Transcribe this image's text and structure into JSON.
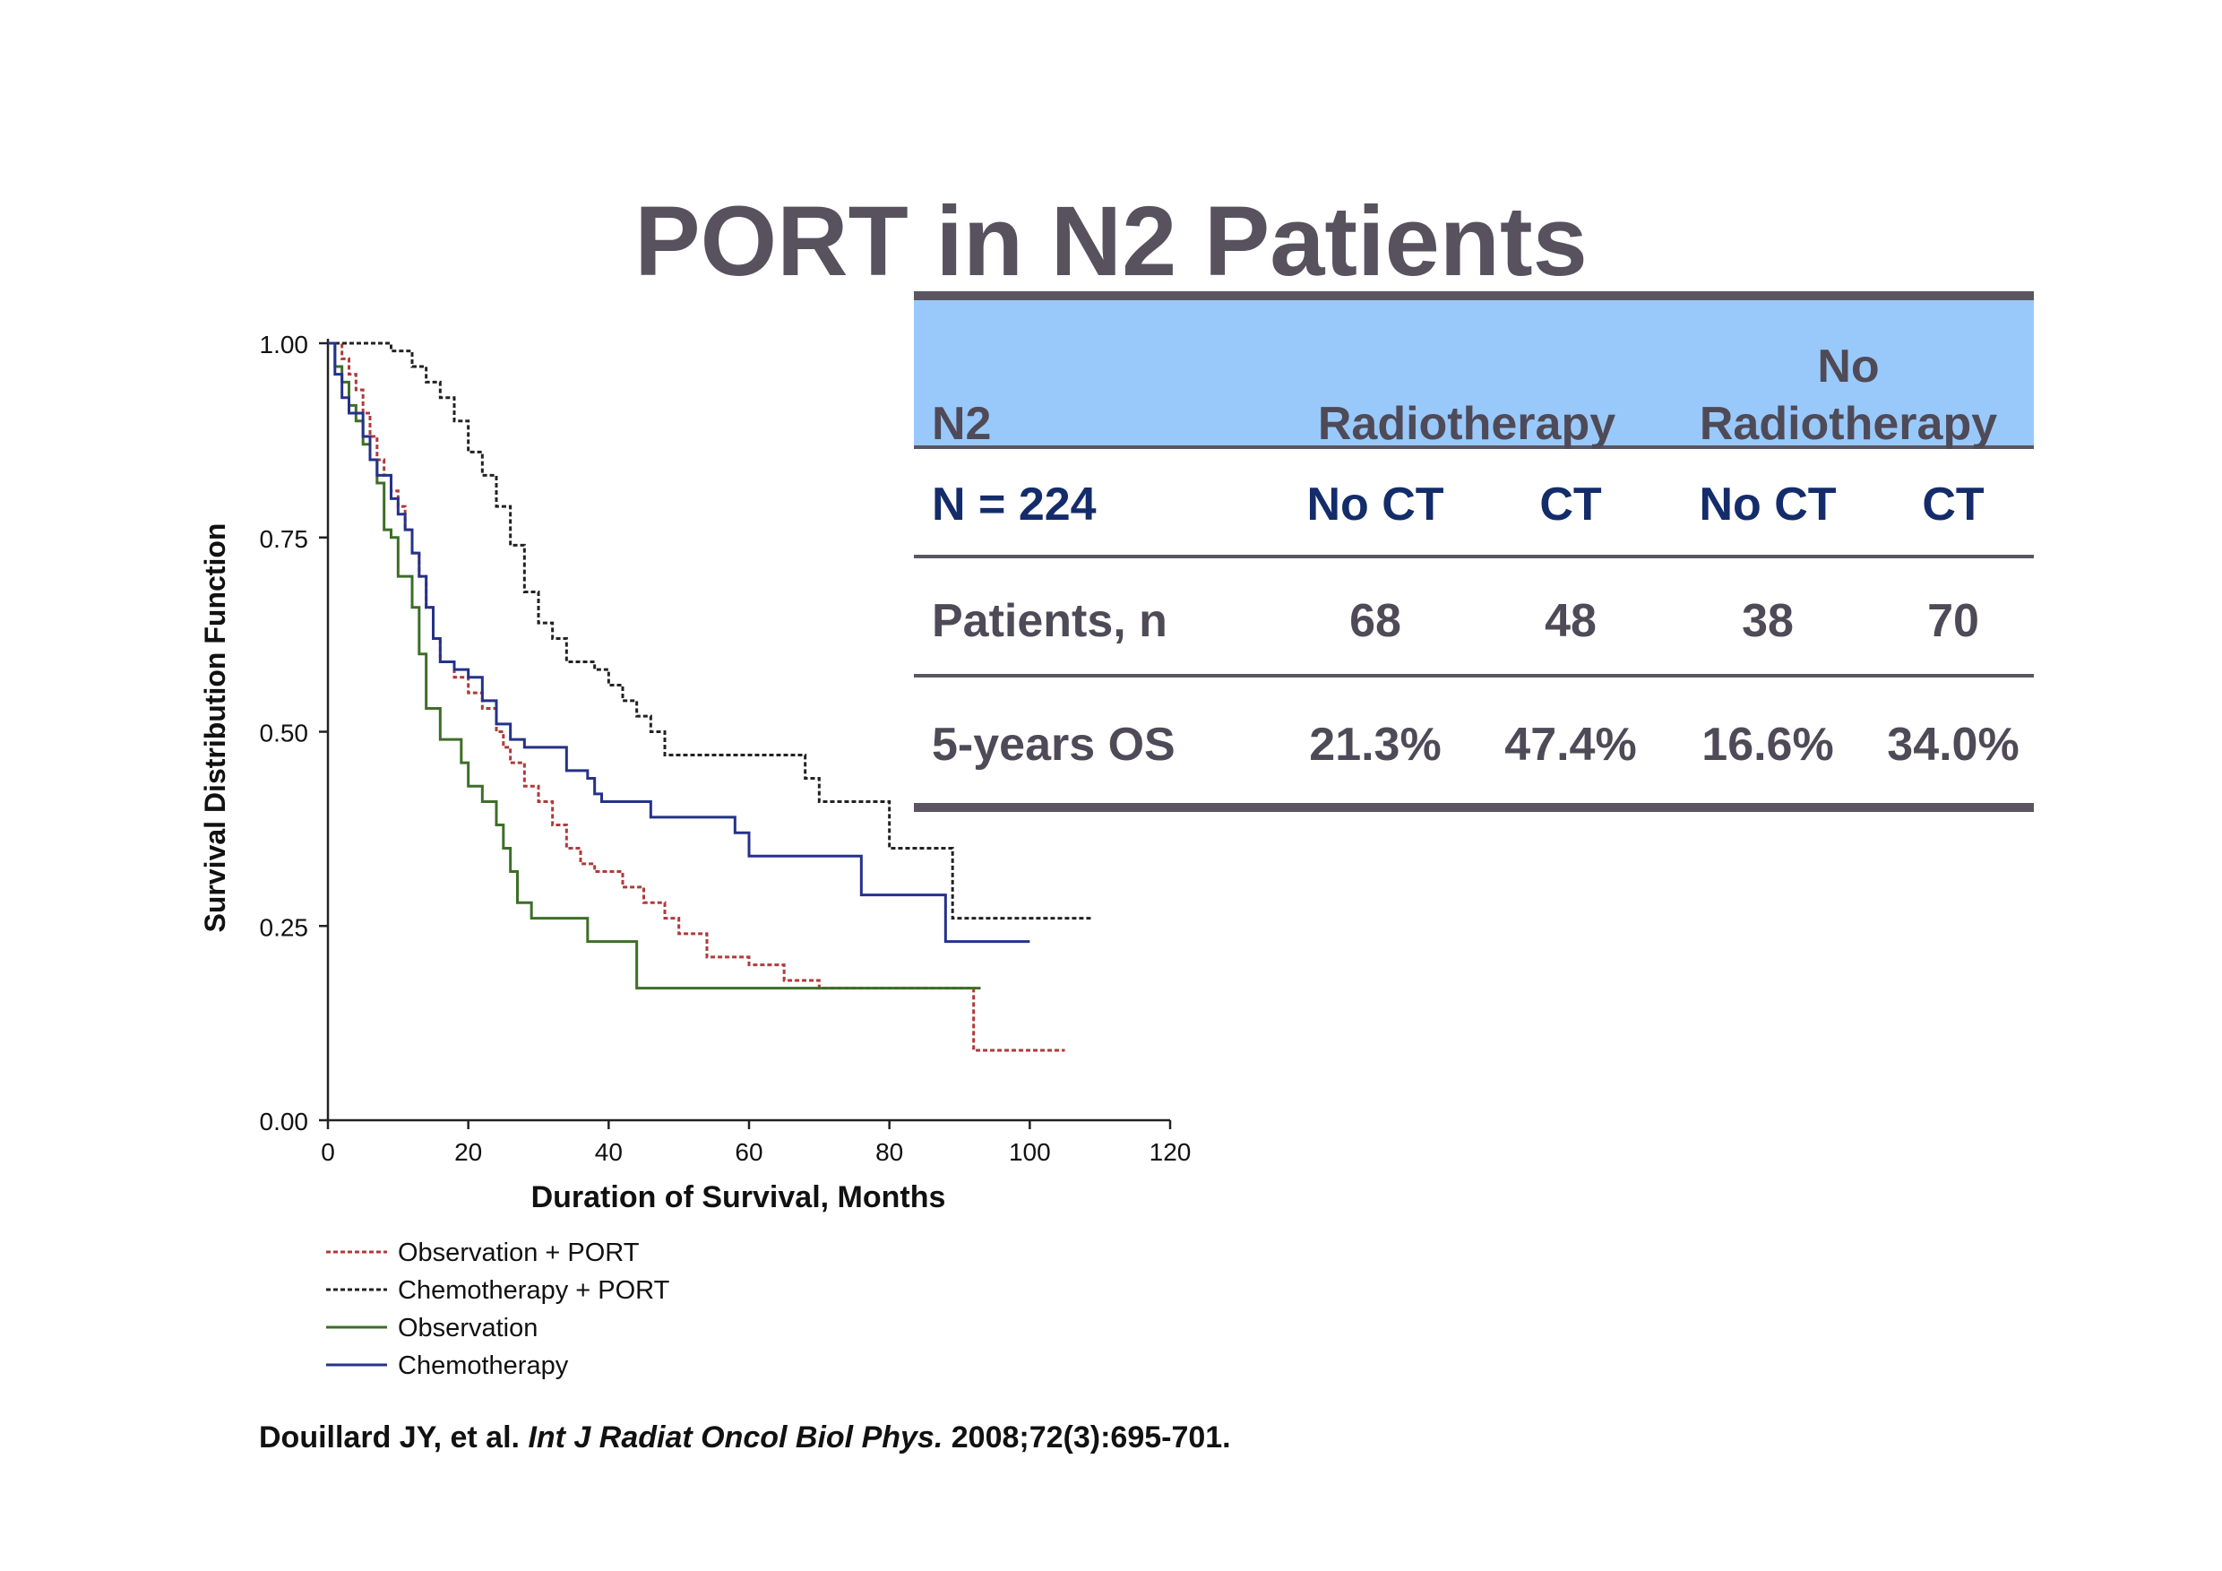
{
  "slide": {
    "title": "PORT in N2 Patients"
  },
  "table": {
    "header": {
      "group_label": "N2",
      "radiotherapy": "Radiotherapy",
      "no_radiotherapy_line1": "No",
      "no_radiotherapy_line2": "Radiotherapy"
    },
    "subheader": {
      "label": "N = 224",
      "cols": [
        "No CT",
        "CT",
        "No CT",
        "CT"
      ]
    },
    "rows": [
      {
        "label": "Patients, n",
        "values": [
          "68",
          "48",
          "38",
          "70"
        ]
      },
      {
        "label": "5-years OS",
        "values": [
          "21.3%",
          "47.4%",
          "16.6%",
          "34.0%"
        ]
      }
    ],
    "colors": {
      "header_bg": "#99c9fb",
      "rule": "#5a5560",
      "subheader_text": "#142c6a",
      "body_text": "#4f4a57"
    }
  },
  "chart_data": {
    "type": "line",
    "title": "",
    "xlabel": "Duration of Survival, Months",
    "ylabel": "Survival Distribution Function",
    "xlim": [
      0,
      120
    ],
    "ylim": [
      0,
      1
    ],
    "xticks": [
      "0",
      "20",
      "40",
      "60",
      "80",
      "100",
      "120"
    ],
    "yticks": [
      "0.00",
      "0.25",
      "0.50",
      "0.75",
      "1.00"
    ],
    "legend_position": "bottom-left",
    "series": [
      {
        "name": "Observation + PORT",
        "color": "#b03a3a",
        "dash": true,
        "points": [
          [
            0,
            1
          ],
          [
            2,
            0.98
          ],
          [
            3,
            0.96
          ],
          [
            4,
            0.94
          ],
          [
            5,
            0.91
          ],
          [
            6,
            0.88
          ],
          [
            7,
            0.85
          ],
          [
            8,
            0.83
          ],
          [
            9,
            0.81
          ],
          [
            10,
            0.79
          ],
          [
            11,
            0.76
          ],
          [
            12,
            0.73
          ],
          [
            13,
            0.7
          ],
          [
            14,
            0.66
          ],
          [
            15,
            0.62
          ],
          [
            16,
            0.59
          ],
          [
            18,
            0.57
          ],
          [
            20,
            0.55
          ],
          [
            22,
            0.53
          ],
          [
            24,
            0.5
          ],
          [
            25,
            0.48
          ],
          [
            26,
            0.46
          ],
          [
            28,
            0.43
          ],
          [
            30,
            0.41
          ],
          [
            32,
            0.38
          ],
          [
            34,
            0.35
          ],
          [
            36,
            0.33
          ],
          [
            38,
            0.32
          ],
          [
            42,
            0.3
          ],
          [
            45,
            0.28
          ],
          [
            48,
            0.26
          ],
          [
            50,
            0.24
          ],
          [
            54,
            0.21
          ],
          [
            60,
            0.2
          ],
          [
            65,
            0.18
          ],
          [
            70,
            0.17
          ],
          [
            92,
            0.17
          ],
          [
            92,
            0.09
          ],
          [
            105,
            0.09
          ]
        ]
      },
      {
        "name": "Chemotherapy + PORT",
        "color": "#222222",
        "dash": true,
        "points": [
          [
            0,
            1
          ],
          [
            8,
            1
          ],
          [
            9,
            0.99
          ],
          [
            12,
            0.97
          ],
          [
            14,
            0.95
          ],
          [
            16,
            0.93
          ],
          [
            18,
            0.9
          ],
          [
            20,
            0.86
          ],
          [
            22,
            0.83
          ],
          [
            24,
            0.79
          ],
          [
            26,
            0.74
          ],
          [
            28,
            0.68
          ],
          [
            30,
            0.64
          ],
          [
            32,
            0.62
          ],
          [
            34,
            0.59
          ],
          [
            38,
            0.58
          ],
          [
            40,
            0.56
          ],
          [
            42,
            0.54
          ],
          [
            44,
            0.52
          ],
          [
            46,
            0.5
          ],
          [
            48,
            0.47
          ],
          [
            66,
            0.47
          ],
          [
            68,
            0.44
          ],
          [
            70,
            0.41
          ],
          [
            80,
            0.41
          ],
          [
            80,
            0.35
          ],
          [
            89,
            0.35
          ],
          [
            89,
            0.26
          ],
          [
            109,
            0.26
          ]
        ]
      },
      {
        "name": "Observation",
        "color": "#3d6e27",
        "dash": false,
        "points": [
          [
            0,
            1
          ],
          [
            1,
            0.97
          ],
          [
            2,
            0.95
          ],
          [
            3,
            0.92
          ],
          [
            4,
            0.9
          ],
          [
            5,
            0.87
          ],
          [
            6,
            0.85
          ],
          [
            7,
            0.82
          ],
          [
            8,
            0.76
          ],
          [
            9,
            0.75
          ],
          [
            10,
            0.7
          ],
          [
            12,
            0.66
          ],
          [
            13,
            0.6
          ],
          [
            14,
            0.53
          ],
          [
            16,
            0.49
          ],
          [
            19,
            0.46
          ],
          [
            20,
            0.43
          ],
          [
            22,
            0.41
          ],
          [
            24,
            0.38
          ],
          [
            25,
            0.35
          ],
          [
            26,
            0.32
          ],
          [
            27,
            0.28
          ],
          [
            29,
            0.26
          ],
          [
            35,
            0.26
          ],
          [
            37,
            0.23
          ],
          [
            43,
            0.23
          ],
          [
            44,
            0.17
          ],
          [
            93,
            0.17
          ]
        ]
      },
      {
        "name": "Chemotherapy",
        "color": "#24328a",
        "dash": false,
        "points": [
          [
            0,
            1
          ],
          [
            1,
            0.96
          ],
          [
            2,
            0.93
          ],
          [
            3,
            0.91
          ],
          [
            5,
            0.88
          ],
          [
            6,
            0.85
          ],
          [
            7,
            0.83
          ],
          [
            9,
            0.8
          ],
          [
            10,
            0.78
          ],
          [
            11,
            0.76
          ],
          [
            12,
            0.73
          ],
          [
            13,
            0.7
          ],
          [
            14,
            0.66
          ],
          [
            15,
            0.62
          ],
          [
            16,
            0.59
          ],
          [
            18,
            0.58
          ],
          [
            20,
            0.57
          ],
          [
            22,
            0.54
          ],
          [
            24,
            0.51
          ],
          [
            26,
            0.49
          ],
          [
            28,
            0.48
          ],
          [
            32,
            0.48
          ],
          [
            34,
            0.45
          ],
          [
            37,
            0.44
          ],
          [
            38,
            0.42
          ],
          [
            39,
            0.41
          ],
          [
            46,
            0.41
          ],
          [
            46,
            0.39
          ],
          [
            56,
            0.39
          ],
          [
            58,
            0.37
          ],
          [
            60,
            0.34
          ],
          [
            75,
            0.34
          ],
          [
            76,
            0.29
          ],
          [
            88,
            0.29
          ],
          [
            88,
            0.23
          ],
          [
            100,
            0.23
          ]
        ]
      }
    ]
  },
  "citation": {
    "authors": "Douillard JY, et al.",
    "journal": "Int J Radiat Oncol Biol Phys.",
    "ref": "2008;72(3):695-701."
  }
}
